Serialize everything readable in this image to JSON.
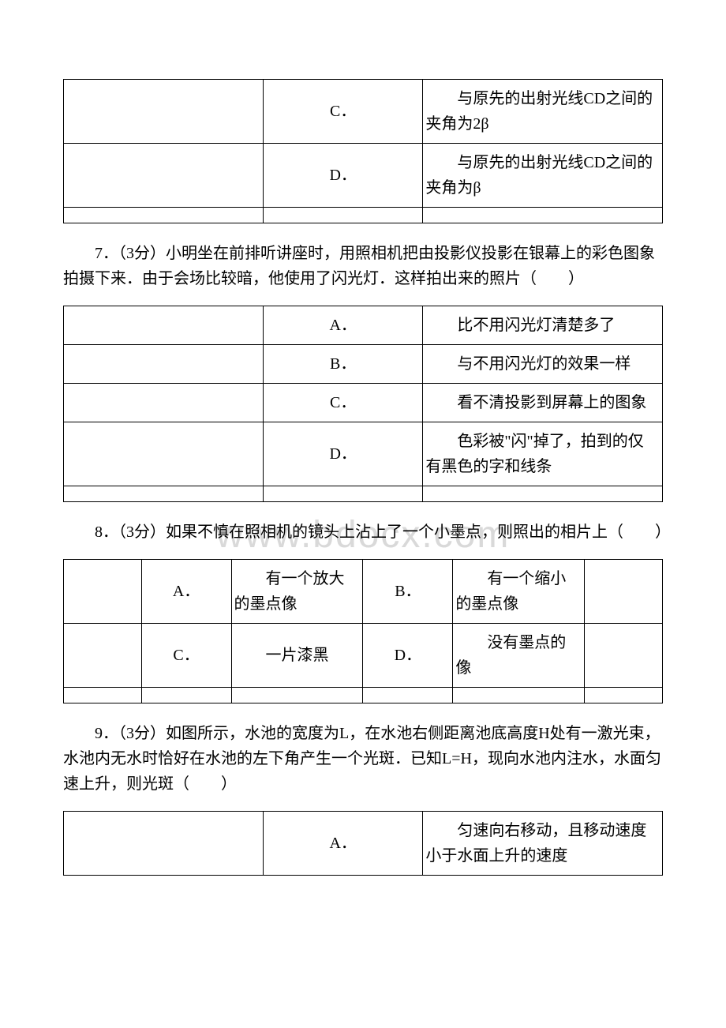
{
  "watermark": "www.bdocx.com",
  "table6": {
    "rows": [
      {
        "label": "",
        "choice": "C．",
        "answer": "与原先的出射光线CD之间的夹角为2β"
      },
      {
        "label": "",
        "choice": "D．",
        "answer": "与原先的出射光线CD之间的夹角为β"
      }
    ]
  },
  "q7": "7．（3分）小明坐在前排听讲座时，用照相机把由投影仪投影在银幕上的彩色图象拍摄下来．由于会场比较暗，他使用了闪光灯．这样拍出来的照片（　　）",
  "table7": {
    "rows": [
      {
        "label": "",
        "choice": "A．",
        "answer": "比不用闪光灯清楚多了"
      },
      {
        "label": "",
        "choice": "B．",
        "answer": "与不用闪光灯的效果一样"
      },
      {
        "label": "",
        "choice": "C．",
        "answer": "看不清投影到屏幕上的图象"
      },
      {
        "label": "",
        "choice": "D．",
        "answer": "色彩被\"闪\"掉了，拍到的仅有黑色的字和线条"
      }
    ]
  },
  "q8": "8．（3分）如果不慎在照相机的镜头上沾上了一个小墨点，则照出的相片上（　　）",
  "table8": {
    "rows": [
      {
        "c1": "A．",
        "a1": "有一个放大的墨点像",
        "c2": "B．",
        "a2": "有一个缩小的墨点像"
      },
      {
        "c1": "C．",
        "a1": "一片漆黑",
        "c2": "D．",
        "a2": "没有墨点的像"
      }
    ]
  },
  "q9": "9．（3分）如图所示，水池的宽度为L，在水池右侧距离池底高度H处有一激光束，水池内无水时恰好在水池的左下角产生一个光斑．已知L=H，现向水池内注水，水面匀速上升，则光斑（　　）",
  "table9": {
    "rows": [
      {
        "label": "",
        "choice": "A．",
        "answer": "匀速向右移动，且移动速度小于水面上升的速度"
      }
    ]
  }
}
